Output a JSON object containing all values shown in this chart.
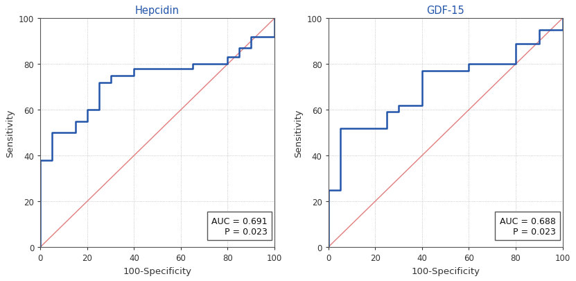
{
  "hepcidin_title": "Hepcidin",
  "gdf15_title": "GDF-15",
  "xlabel": "100-Specificity",
  "ylabel": "Sensitivity",
  "hepcidin_auc_text": "AUC = 0.691\nP = 0.023",
  "gdf15_auc_text": "AUC = 0.688\nP = 0.023",
  "hepcidin_x": [
    0,
    0,
    5,
    5,
    15,
    15,
    20,
    20,
    25,
    25,
    30,
    30,
    40,
    40,
    65,
    65,
    80,
    80,
    85,
    85,
    90,
    90,
    100,
    100
  ],
  "hepcidin_y": [
    0,
    38,
    38,
    50,
    50,
    55,
    55,
    60,
    60,
    72,
    72,
    75,
    75,
    78,
    78,
    80,
    80,
    83,
    83,
    87,
    87,
    92,
    92,
    100
  ],
  "gdf15_x": [
    0,
    0,
    5,
    5,
    10,
    10,
    25,
    25,
    30,
    30,
    40,
    40,
    60,
    60,
    80,
    80,
    90,
    90,
    100,
    100
  ],
  "gdf15_y": [
    0,
    25,
    25,
    52,
    52,
    52,
    52,
    59,
    59,
    62,
    62,
    77,
    77,
    80,
    80,
    89,
    89,
    95,
    95,
    100
  ],
  "roc_color": "#2255aa",
  "diag_color": "#dd6666",
  "background_color": "#ffffff",
  "grid_color": "#bbbbbb",
  "title_color": "#2255aa",
  "axis_color": "#333333",
  "text_box_facecolor": "#ffffff",
  "text_box_edgecolor": "#555555",
  "xlim": [
    0,
    100
  ],
  "ylim": [
    0,
    100
  ],
  "xticks": [
    0,
    20,
    40,
    60,
    80,
    100
  ],
  "yticks": [
    0,
    20,
    40,
    60,
    80,
    100
  ]
}
